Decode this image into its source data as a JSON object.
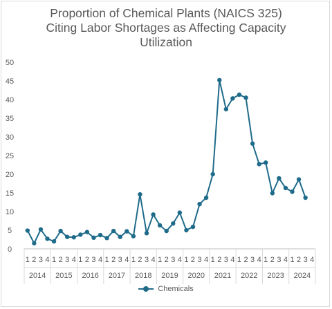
{
  "chart_data": {
    "type": "line",
    "title_lines": [
      "Proportion of Chemical Plants (NAICS 325)",
      "Citing Labor Shortages as Affecting Capacity",
      "Utilization"
    ],
    "ylim": [
      0,
      50
    ],
    "yticks": [
      0,
      5,
      10,
      15,
      20,
      25,
      30,
      35,
      40,
      45,
      50
    ],
    "quarters": [
      "1",
      "2",
      "3",
      "4"
    ],
    "years": [
      "2014",
      "2015",
      "2016",
      "2017",
      "2018",
      "2019",
      "2020",
      "2021",
      "2022",
      "2023",
      "2024"
    ],
    "grid": false,
    "legend_position": "bottom",
    "series": [
      {
        "name": "Chemicals",
        "color": "#1f6b8a",
        "values": [
          4.9,
          1.5,
          5.2,
          2.7,
          2.0,
          4.8,
          3.2,
          3.1,
          3.8,
          4.5,
          3.0,
          3.7,
          2.9,
          4.8,
          3.2,
          4.7,
          3.4,
          14.6,
          4.2,
          9.2,
          6.3,
          4.8,
          6.8,
          9.7,
          5.0,
          5.9,
          12.0,
          13.7,
          20.0,
          45.2,
          37.4,
          40.3,
          41.3,
          40.5,
          28.2,
          22.7,
          23.1,
          14.9,
          18.9,
          16.3,
          15.3,
          18.6,
          13.7
        ]
      }
    ]
  }
}
